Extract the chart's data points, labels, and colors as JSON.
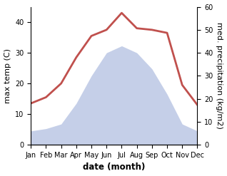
{
  "months": [
    "Jan",
    "Feb",
    "Mar",
    "Apr",
    "May",
    "Jun",
    "Jul",
    "Aug",
    "Sep",
    "Oct",
    "Nov",
    "Dec"
  ],
  "month_indices": [
    1,
    2,
    3,
    4,
    5,
    6,
    7,
    8,
    9,
    10,
    11,
    12
  ],
  "temperature": [
    13.5,
    15.5,
    20.0,
    28.5,
    35.5,
    37.5,
    43.0,
    38.0,
    37.5,
    36.5,
    19.5,
    13.0
  ],
  "precipitation": [
    6.0,
    7.0,
    9.0,
    18.0,
    30.0,
    40.0,
    43.0,
    40.0,
    33.0,
    22.0,
    9.0,
    6.0
  ],
  "temp_color": "#c0504d",
  "precip_fill_color": "#c5cfe8",
  "temp_ylim": [
    0,
    45
  ],
  "temp_yticks": [
    0,
    10,
    20,
    30,
    40
  ],
  "precip_ylim": [
    0,
    60
  ],
  "precip_yticks": [
    0,
    10,
    20,
    30,
    40,
    50,
    60
  ],
  "xlabel": "date (month)",
  "ylabel_left": "max temp (C)",
  "ylabel_right": "med. precipitation (kg/m2)",
  "temp_linewidth": 2.0,
  "xlabel_fontsize": 8.5,
  "ylabel_fontsize": 8,
  "tick_fontsize": 7,
  "xlabel_fontweight": "bold"
}
